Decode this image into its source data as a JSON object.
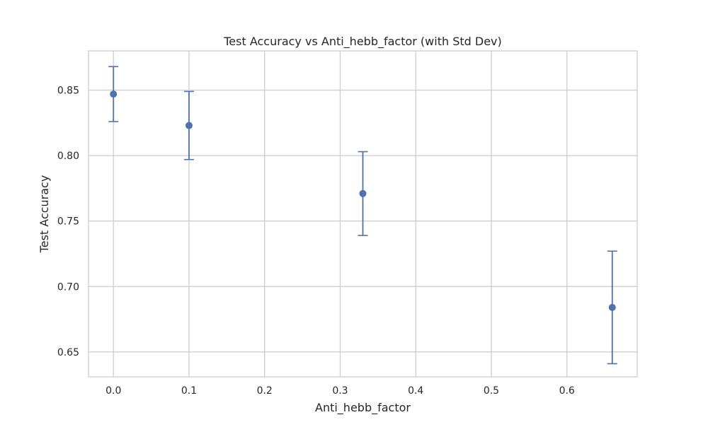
{
  "chart_data": {
    "type": "scatter",
    "title": "Test Accuracy vs Anti_hebb_factor (with Std Dev)",
    "xlabel": "Anti_hebb_factor",
    "ylabel": "Test Accuracy",
    "xlim": [
      -0.033,
      0.693
    ],
    "ylim": [
      0.631,
      0.88
    ],
    "xticks": [
      0.0,
      0.1,
      0.2,
      0.3,
      0.4,
      0.5,
      0.6
    ],
    "xtick_labels": [
      "0.0",
      "0.1",
      "0.2",
      "0.3",
      "0.4",
      "0.5",
      "0.6"
    ],
    "yticks": [
      0.65,
      0.7,
      0.75,
      0.8,
      0.85
    ],
    "ytick_labels": [
      "0.65",
      "0.70",
      "0.75",
      "0.80",
      "0.85"
    ],
    "grid": true,
    "series": [
      {
        "x": [
          0.0,
          0.1,
          0.33,
          0.66
        ],
        "values": [
          0.847,
          0.823,
          0.771,
          0.684
        ],
        "error": [
          0.021,
          0.026,
          0.032,
          0.043
        ],
        "color": "#4c72b0"
      }
    ]
  },
  "colors": {
    "grid": "#cccccc",
    "frame": "#cccccc",
    "text": "#262626"
  }
}
